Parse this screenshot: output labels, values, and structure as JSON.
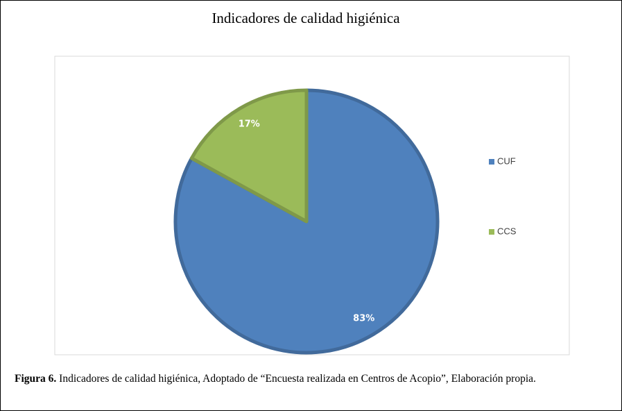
{
  "chart_data": {
    "type": "pie",
    "title": "Indicadores de calidad higiénica",
    "categories": [
      "CUF",
      "CCS"
    ],
    "values": [
      83,
      17
    ],
    "value_labels": [
      "83%",
      "17%"
    ],
    "colors": [
      "#4f81bd",
      "#9bbb59"
    ],
    "legend": "right"
  },
  "figure": {
    "label": "Figura 6.",
    "text": "Indicadores de calidad higiénica, Adoptado de “Encuesta realizada en Centros de Acopio”, Elaboración propia."
  }
}
